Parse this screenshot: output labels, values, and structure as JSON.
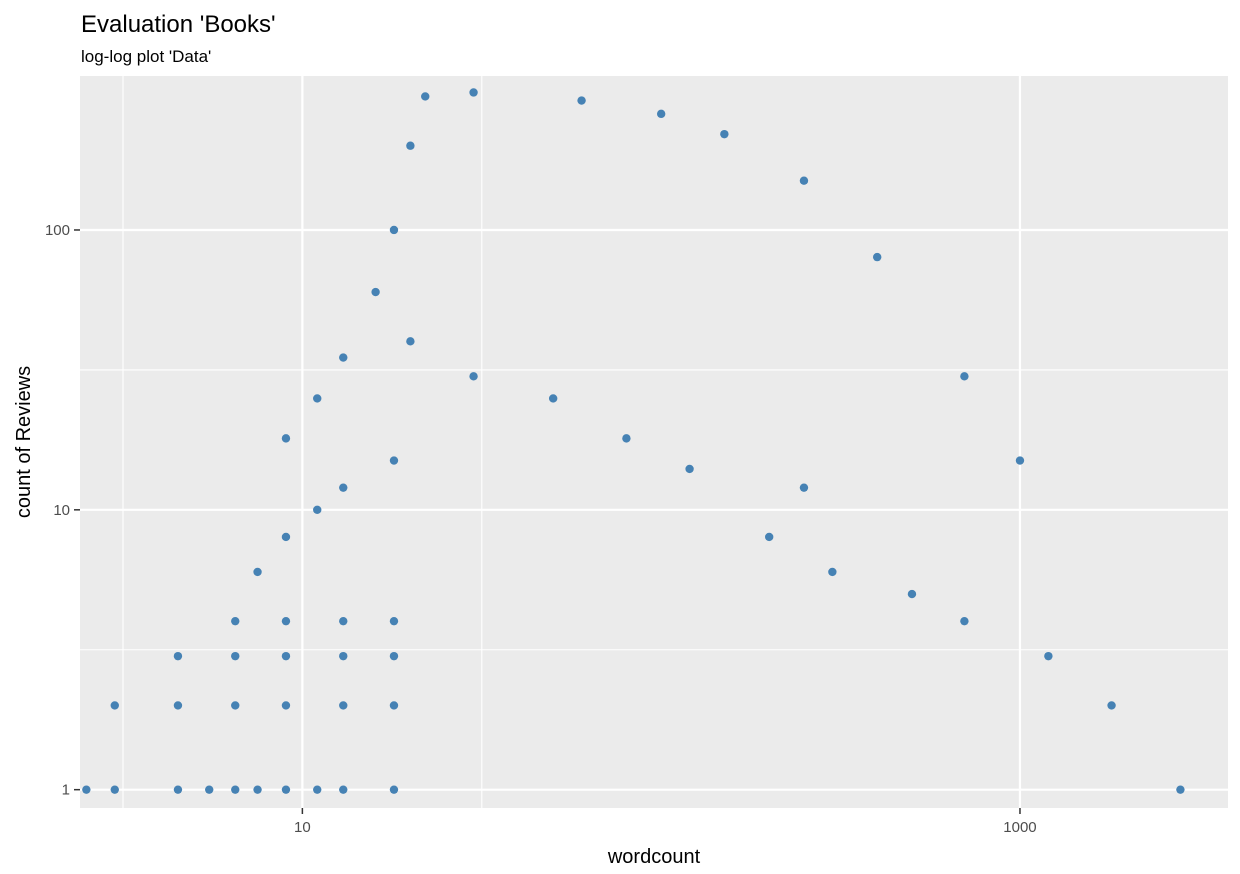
{
  "chart_data": {
    "type": "scatter",
    "title": "Evaluation 'Books'",
    "subtitle": "log-log plot 'Data'",
    "xlabel": "wordcount",
    "ylabel": "count of Reviews",
    "x_scale": "log",
    "y_scale": "log",
    "xlim": [
      2.4,
      3800
    ],
    "ylim": [
      0.86,
      355
    ],
    "x_ticks": [
      {
        "value": 10,
        "label": "10"
      },
      {
        "value": 1000,
        "label": "1000"
      }
    ],
    "y_ticks": [
      {
        "value": 1,
        "label": "1"
      },
      {
        "value": 10,
        "label": "10"
      },
      {
        "value": 100,
        "label": "100"
      }
    ],
    "grid": true,
    "legend": "none",
    "colors": {
      "panel": "#EBEBEB",
      "grid": "#FFFFFF",
      "point": "#4682B4",
      "tick": "#333333"
    },
    "sample_points": [
      [
        2.5,
        1
      ],
      [
        3,
        1
      ],
      [
        4.5,
        1
      ],
      [
        5.5,
        1
      ],
      [
        6.5,
        1
      ],
      [
        7.5,
        1
      ],
      [
        9,
        1
      ],
      [
        11,
        1
      ],
      [
        13,
        1
      ],
      [
        18,
        1
      ],
      [
        3,
        2
      ],
      [
        4.5,
        2
      ],
      [
        6.5,
        2
      ],
      [
        9,
        2
      ],
      [
        13,
        2
      ],
      [
        18,
        2
      ],
      [
        4.5,
        3
      ],
      [
        6.5,
        3
      ],
      [
        9,
        3
      ],
      [
        13,
        3
      ],
      [
        18,
        3
      ],
      [
        6.5,
        4
      ],
      [
        9,
        4
      ],
      [
        13,
        4
      ],
      [
        18,
        4
      ],
      [
        7.5,
        6
      ],
      [
        9,
        8
      ],
      [
        11,
        10
      ],
      [
        13,
        12
      ],
      [
        18,
        15
      ],
      [
        9,
        18
      ],
      [
        11,
        25
      ],
      [
        13,
        35
      ],
      [
        16,
        60
      ],
      [
        18,
        100
      ],
      [
        20,
        200
      ],
      [
        22,
        300
      ],
      [
        30,
        310
      ],
      [
        60,
        290
      ],
      [
        100,
        260
      ],
      [
        150,
        220
      ],
      [
        250,
        150
      ],
      [
        400,
        80
      ],
      [
        700,
        30
      ],
      [
        1000,
        15
      ],
      [
        20,
        40
      ],
      [
        30,
        30
      ],
      [
        50,
        25
      ],
      [
        80,
        18
      ],
      [
        120,
        14
      ],
      [
        250,
        12
      ],
      [
        200,
        8
      ],
      [
        300,
        6
      ],
      [
        500,
        5
      ],
      [
        700,
        4
      ],
      [
        1200,
        3
      ],
      [
        1800,
        2
      ],
      [
        2800,
        1
      ]
    ]
  }
}
